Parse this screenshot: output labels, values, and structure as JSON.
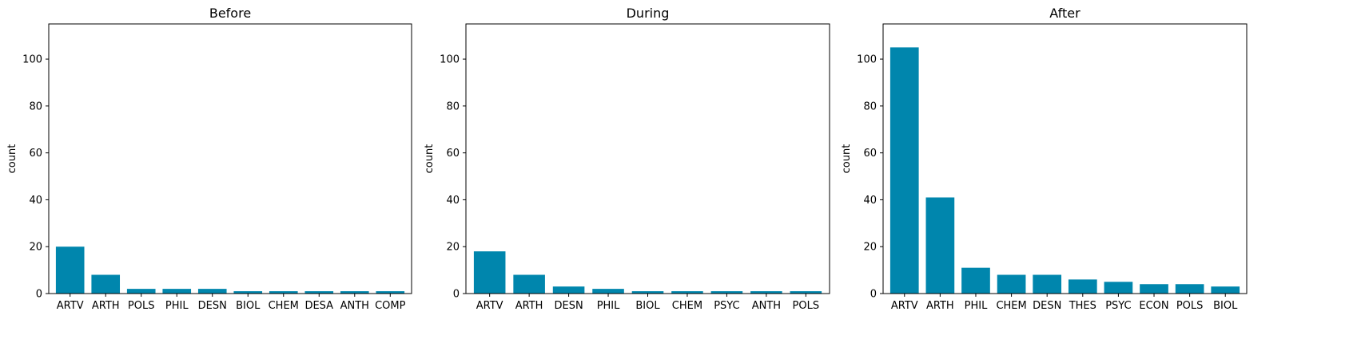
{
  "colors": {
    "bar": "#0086ad",
    "axis": "#000000",
    "background": "#ffffff"
  },
  "chart_data": [
    {
      "type": "bar",
      "title": "Before",
      "xlabel": "",
      "ylabel": "count",
      "ylim": [
        0,
        115
      ],
      "yticks": [
        0,
        20,
        40,
        60,
        80,
        100
      ],
      "grid": false,
      "categories": [
        "ARTV",
        "ARTH",
        "POLS",
        "PHIL",
        "DESN",
        "BIOL",
        "CHEM",
        "DESA",
        "ANTH",
        "COMP"
      ],
      "values": [
        20,
        8,
        2,
        2,
        2,
        1,
        1,
        1,
        1,
        1
      ]
    },
    {
      "type": "bar",
      "title": "During",
      "xlabel": "",
      "ylabel": "count",
      "ylim": [
        0,
        115
      ],
      "yticks": [
        0,
        20,
        40,
        60,
        80,
        100
      ],
      "grid": false,
      "categories": [
        "ARTV",
        "ARTH",
        "DESN",
        "PHIL",
        "BIOL",
        "CHEM",
        "PSYC",
        "ANTH",
        "POLS"
      ],
      "values": [
        18,
        8,
        3,
        2,
        1,
        1,
        1,
        1,
        1
      ]
    },
    {
      "type": "bar",
      "title": "After",
      "xlabel": "",
      "ylabel": "count",
      "ylim": [
        0,
        115
      ],
      "yticks": [
        0,
        20,
        40,
        60,
        80,
        100
      ],
      "grid": false,
      "categories": [
        "ARTV",
        "ARTH",
        "PHIL",
        "CHEM",
        "DESN",
        "THES",
        "PSYC",
        "ECON",
        "POLS",
        "BIOL"
      ],
      "values": [
        105,
        41,
        11,
        8,
        8,
        6,
        5,
        4,
        4,
        3
      ]
    }
  ]
}
